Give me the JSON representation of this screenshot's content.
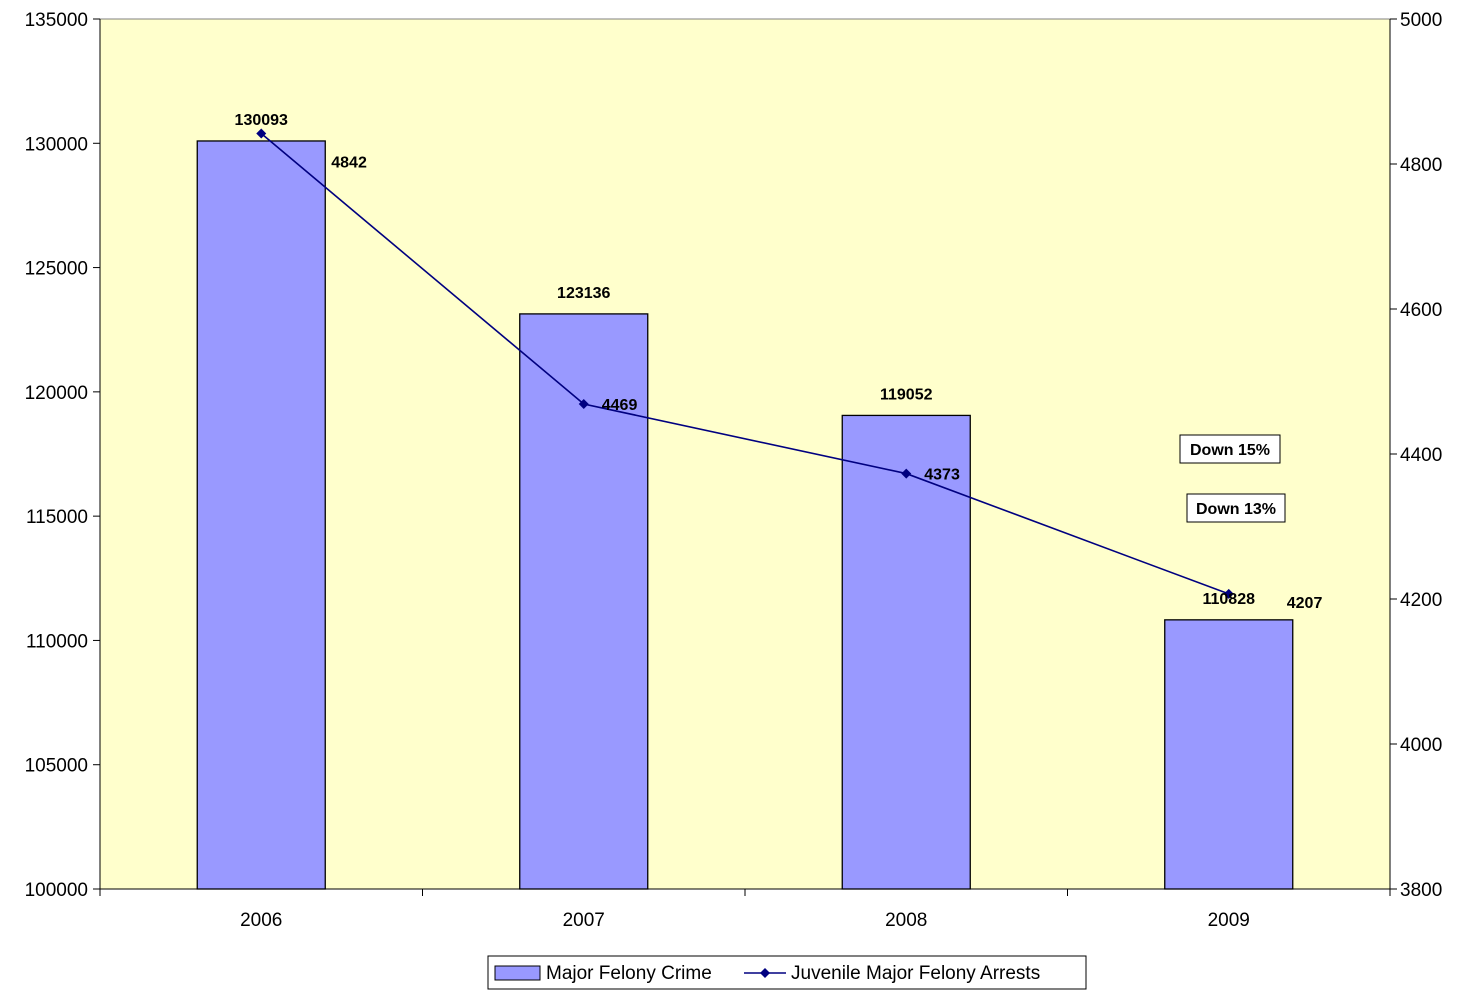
{
  "chart_data": {
    "type": "bar",
    "categories": [
      "2006",
      "2007",
      "2008",
      "2009"
    ],
    "series": [
      {
        "name": "Major Felony Crime",
        "type": "bar",
        "axis": "left",
        "values": [
          130093,
          123136,
          119052,
          110828
        ],
        "color": "#9999ff"
      },
      {
        "name": "Juvenile Major Felony Arrests",
        "type": "line",
        "axis": "right",
        "values": [
          4842,
          4469,
          4373,
          4207
        ],
        "color": "#000080"
      }
    ],
    "y_left": {
      "ylim": [
        100000,
        135000
      ],
      "ticks": [
        100000,
        105000,
        110000,
        115000,
        120000,
        125000,
        130000,
        135000
      ]
    },
    "y_right": {
      "ylim": [
        3800,
        5000
      ],
      "ticks": [
        3800,
        4000,
        4200,
        4400,
        4600,
        4800,
        5000
      ]
    },
    "annotations": [
      "Down 15%",
      "Down 13%"
    ],
    "plot_background": "#ffffcc",
    "grid": false,
    "legend_position": "bottom"
  }
}
